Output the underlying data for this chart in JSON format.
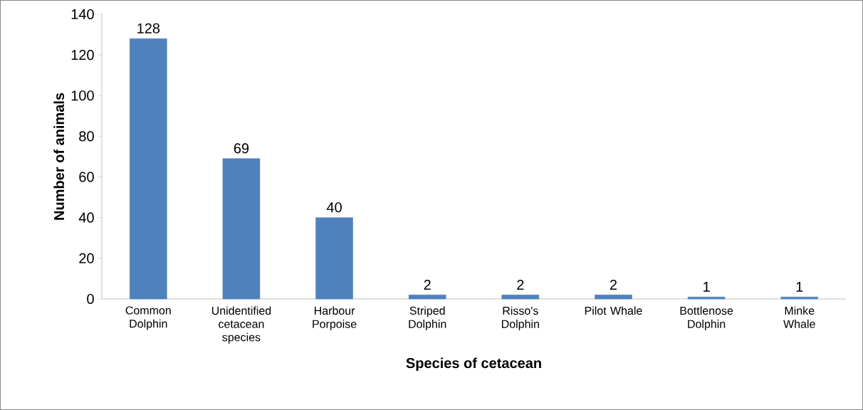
{
  "chart_data": {
    "type": "bar",
    "xlabel": "Species of cetacean",
    "ylabel": "Number of animals",
    "categories": [
      "Common Dolphin",
      "Unidentified cetacean species",
      "Harbour Porpoise",
      "Striped Dolphin",
      "Risso's Dolphin",
      "Pilot Whale",
      "Bottlenose Dolphin",
      "Minke Whale"
    ],
    "values": [
      128,
      69,
      40,
      2,
      2,
      2,
      1,
      1
    ],
    "color": "#4f81bd",
    "ylim": [
      0,
      140
    ],
    "yticks": [
      0,
      20,
      40,
      60,
      80,
      100,
      120,
      140
    ],
    "data_labels": true
  }
}
